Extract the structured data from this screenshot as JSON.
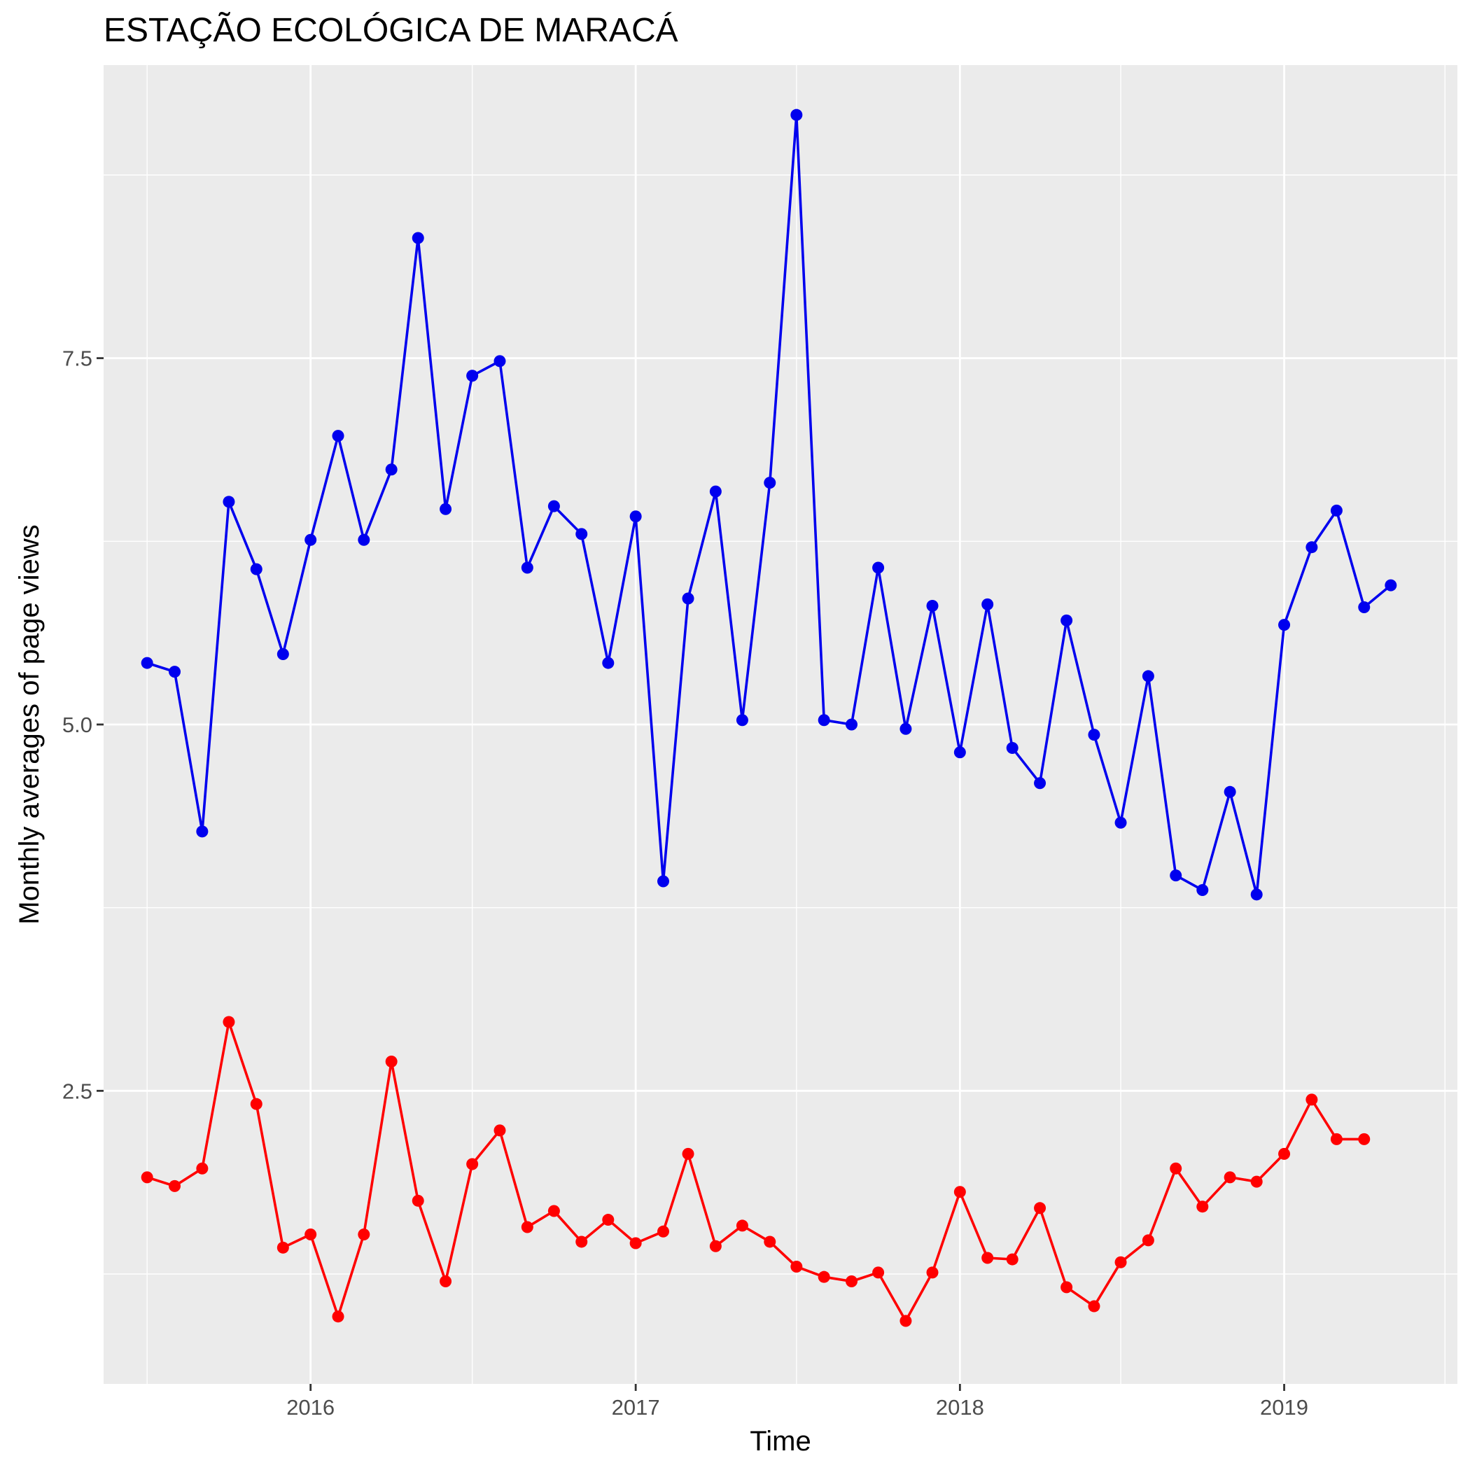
{
  "chart_data": {
    "type": "line",
    "title": "ESTAÇÃO ECOLÓGICA DE MARACÁ",
    "xlabel": "Time",
    "ylabel": "Monthly averages of page views",
    "x_ticks": [
      "2016",
      "2017",
      "2018",
      "2019"
    ],
    "y_ticks": [
      "2.5",
      "5.0",
      "7.5"
    ],
    "xlim": [
      "2015-05-13",
      "2019-07-15"
    ],
    "ylim": [
      0.5,
      9.5
    ],
    "grid": true,
    "panel_background": "#ebebeb",
    "series": [
      {
        "color": "#0000ee",
        "points": [
          [
            "2015-07-01",
            5.42
          ],
          [
            "2015-08-01",
            5.36
          ],
          [
            "2015-09-01",
            4.27
          ],
          [
            "2015-10-01",
            6.52
          ],
          [
            "2015-11-01",
            6.06
          ],
          [
            "2015-12-01",
            5.48
          ],
          [
            "2016-01-01",
            6.26
          ],
          [
            "2016-02-01",
            6.97
          ],
          [
            "2016-03-01",
            6.26
          ],
          [
            "2016-04-01",
            6.74
          ],
          [
            "2016-05-01",
            8.32
          ],
          [
            "2016-06-01",
            6.47
          ],
          [
            "2016-07-01",
            7.38
          ],
          [
            "2016-08-01",
            7.48
          ],
          [
            "2016-09-01",
            6.07
          ],
          [
            "2016-10-01",
            6.49
          ],
          [
            "2016-11-01",
            6.3
          ],
          [
            "2016-12-01",
            5.42
          ],
          [
            "2017-01-01",
            6.42
          ],
          [
            "2017-02-01",
            3.93
          ],
          [
            "2017-03-01",
            5.86
          ],
          [
            "2017-04-01",
            6.59
          ],
          [
            "2017-05-01",
            5.03
          ],
          [
            "2017-06-01",
            6.65
          ],
          [
            "2017-07-01",
            9.16
          ],
          [
            "2017-08-01",
            5.03
          ],
          [
            "2017-09-01",
            5.0
          ],
          [
            "2017-10-01",
            6.07
          ],
          [
            "2017-11-01",
            4.97
          ],
          [
            "2017-12-01",
            5.81
          ],
          [
            "2018-01-01",
            4.81
          ],
          [
            "2018-02-01",
            5.82
          ],
          [
            "2018-03-01",
            4.84
          ],
          [
            "2018-04-01",
            4.6
          ],
          [
            "2018-05-01",
            5.71
          ],
          [
            "2018-06-01",
            4.93
          ],
          [
            "2018-07-01",
            4.33
          ],
          [
            "2018-08-01",
            5.33
          ],
          [
            "2018-09-01",
            3.97
          ],
          [
            "2018-10-01",
            3.87
          ],
          [
            "2018-11-01",
            4.54
          ],
          [
            "2018-12-01",
            3.84
          ],
          [
            "2019-01-01",
            5.68
          ],
          [
            "2019-02-01",
            6.21
          ],
          [
            "2019-03-01",
            6.46
          ],
          [
            "2019-04-01",
            5.8
          ],
          [
            "2019-05-01",
            5.95
          ]
        ]
      },
      {
        "color": "#ff0000",
        "points": [
          [
            "2015-07-01",
            1.91
          ],
          [
            "2015-08-01",
            1.85
          ],
          [
            "2015-09-01",
            1.97
          ],
          [
            "2015-10-01",
            2.97
          ],
          [
            "2015-11-01",
            2.41
          ],
          [
            "2015-12-01",
            1.43
          ],
          [
            "2016-01-01",
            1.52
          ],
          [
            "2016-02-01",
            0.96
          ],
          [
            "2016-03-01",
            1.52
          ],
          [
            "2016-04-01",
            2.7
          ],
          [
            "2016-05-01",
            1.75
          ],
          [
            "2016-06-01",
            1.2
          ],
          [
            "2016-07-01",
            2.0
          ],
          [
            "2016-08-01",
            2.23
          ],
          [
            "2016-09-01",
            1.57
          ],
          [
            "2016-10-01",
            1.68
          ],
          [
            "2016-11-01",
            1.47
          ],
          [
            "2016-12-01",
            1.62
          ],
          [
            "2017-01-01",
            1.46
          ],
          [
            "2017-02-01",
            1.54
          ],
          [
            "2017-03-01",
            2.07
          ],
          [
            "2017-04-01",
            1.44
          ],
          [
            "2017-05-01",
            1.58
          ],
          [
            "2017-06-01",
            1.47
          ],
          [
            "2017-07-01",
            1.3
          ],
          [
            "2017-08-01",
            1.23
          ],
          [
            "2017-09-01",
            1.2
          ],
          [
            "2017-10-01",
            1.26
          ],
          [
            "2017-11-01",
            0.93
          ],
          [
            "2017-12-01",
            1.26
          ],
          [
            "2018-01-01",
            1.81
          ],
          [
            "2018-02-01",
            1.36
          ],
          [
            "2018-03-01",
            1.35
          ],
          [
            "2018-04-01",
            1.7
          ],
          [
            "2018-05-01",
            1.16
          ],
          [
            "2018-06-01",
            1.03
          ],
          [
            "2018-07-01",
            1.33
          ],
          [
            "2018-08-01",
            1.48
          ],
          [
            "2018-09-01",
            1.97
          ],
          [
            "2018-10-01",
            1.71
          ],
          [
            "2018-11-01",
            1.91
          ],
          [
            "2018-12-01",
            1.88
          ],
          [
            "2019-01-01",
            2.07
          ],
          [
            "2019-02-01",
            2.44
          ],
          [
            "2019-03-01",
            2.17
          ],
          [
            "2019-04-01",
            2.17
          ]
        ]
      }
    ]
  }
}
